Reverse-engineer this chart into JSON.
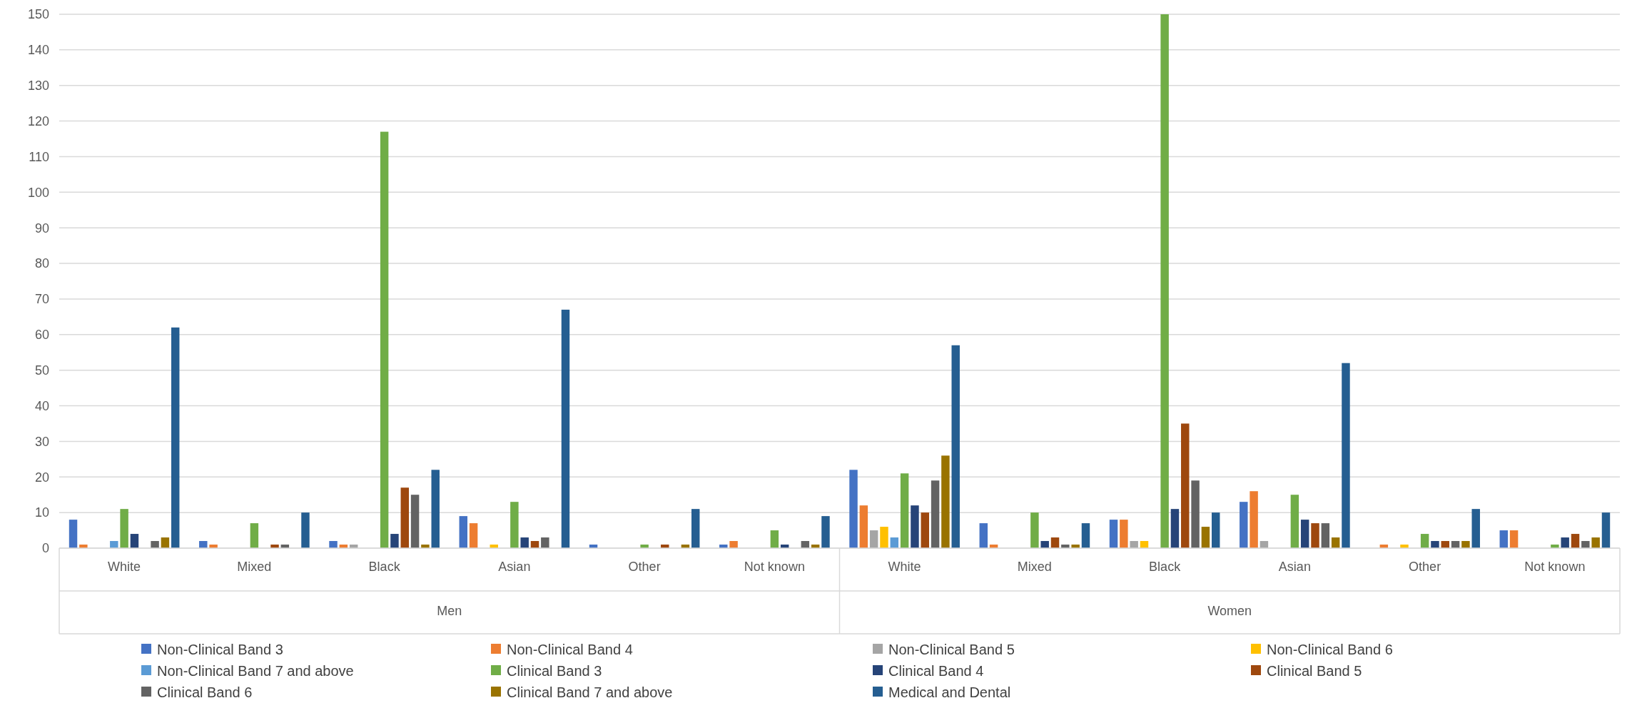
{
  "chart_data": {
    "type": "bar",
    "categories": [
      "White",
      "Mixed",
      "Black",
      "Asian",
      "Other",
      "Not known",
      "White",
      "Mixed",
      "Black",
      "Asian",
      "Other",
      "Not known"
    ],
    "annotations": [
      "Men",
      "Women"
    ],
    "series": [
      {
        "name": "Non-Clinical Band 3",
        "color": "#4472c4",
        "values": [
          8,
          2,
          2,
          9,
          1,
          1,
          22,
          7,
          8,
          13,
          0,
          5
        ]
      },
      {
        "name": "Non-Clinical Band 4",
        "color": "#ed7d31",
        "values": [
          1,
          1,
          1,
          7,
          0,
          2,
          12,
          1,
          8,
          16,
          1,
          5
        ]
      },
      {
        "name": "Non-Clinical Band 5",
        "color": "#a5a5a5",
        "values": [
          0,
          0,
          1,
          0,
          0,
          0,
          5,
          0,
          2,
          2,
          0,
          0
        ]
      },
      {
        "name": "Non-Clinical Band 6",
        "color": "#ffc000",
        "values": [
          0,
          0,
          0,
          1,
          0,
          0,
          6,
          0,
          2,
          0,
          1,
          0
        ]
      },
      {
        "name": "Non-Clinical Band 7 and above",
        "color": "#5b9bd5",
        "values": [
          2,
          0,
          0,
          0,
          0,
          0,
          3,
          0,
          0,
          0,
          0,
          0
        ]
      },
      {
        "name": "Clinical Band 3",
        "color": "#70ad47",
        "values": [
          11,
          7,
          117,
          13,
          1,
          5,
          21,
          10,
          150,
          15,
          4,
          1
        ]
      },
      {
        "name": "Clinical Band 4",
        "color": "#264478",
        "values": [
          4,
          0,
          4,
          3,
          0,
          1,
          12,
          2,
          11,
          8,
          2,
          3
        ]
      },
      {
        "name": "Clinical Band 5",
        "color": "#9e480e",
        "values": [
          0,
          1,
          17,
          2,
          1,
          0,
          10,
          3,
          35,
          7,
          2,
          4
        ]
      },
      {
        "name": "Clinical Band 6",
        "color": "#636363",
        "values": [
          2,
          1,
          15,
          3,
          0,
          2,
          19,
          1,
          19,
          7,
          2,
          2
        ]
      },
      {
        "name": "Clinical Band 7 and above",
        "color": "#997300",
        "values": [
          3,
          0,
          1,
          0,
          1,
          1,
          26,
          1,
          6,
          3,
          2,
          3
        ]
      },
      {
        "name": "Medical and Dental",
        "color": "#255e91",
        "values": [
          62,
          10,
          22,
          67,
          11,
          9,
          57,
          7,
          10,
          52,
          11,
          10
        ]
      }
    ],
    "ylim": [
      0,
      150
    ],
    "yticks": [
      0,
      10,
      20,
      30,
      40,
      50,
      60,
      70,
      80,
      90,
      100,
      110,
      120,
      130,
      140,
      150
    ],
    "grid": "y",
    "legend": "bottom"
  }
}
